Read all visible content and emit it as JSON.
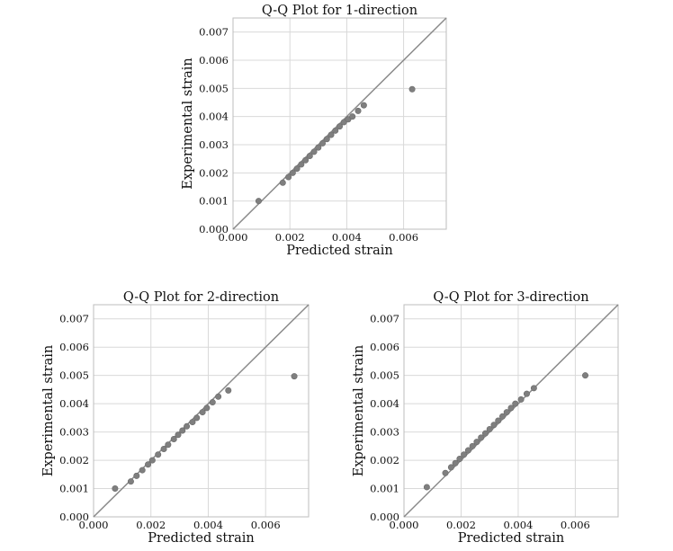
{
  "chart_data": [
    {
      "type": "scatter",
      "title": "Q-Q Plot for 1-direction",
      "xlabel": "Predicted strain",
      "ylabel": "Experimental strain",
      "xlim": [
        0.0,
        0.0075
      ],
      "ylim": [
        0.0,
        0.0075
      ],
      "x_ticks": [
        "0.000",
        "0.002",
        "0.004",
        "0.006"
      ],
      "y_ticks": [
        "0.000",
        "0.001",
        "0.002",
        "0.003",
        "0.004",
        "0.005",
        "0.006",
        "0.007"
      ],
      "x_tick_values": [
        0.0,
        0.002,
        0.004,
        0.006
      ],
      "y_tick_values": [
        0.0,
        0.001,
        0.002,
        0.003,
        0.004,
        0.005,
        0.006,
        0.007
      ],
      "grid": true,
      "reference_line": [
        [
          0.0,
          0.0
        ],
        [
          0.0075,
          0.0075
        ]
      ],
      "points": [
        [
          0.0009,
          0.001
        ],
        [
          0.00175,
          0.00165
        ],
        [
          0.00195,
          0.00185
        ],
        [
          0.0021,
          0.002
        ],
        [
          0.00225,
          0.00215
        ],
        [
          0.0024,
          0.0023
        ],
        [
          0.00255,
          0.00245
        ],
        [
          0.0027,
          0.0026
        ],
        [
          0.00285,
          0.00275
        ],
        [
          0.003,
          0.0029
        ],
        [
          0.00315,
          0.00305
        ],
        [
          0.0033,
          0.0032
        ],
        [
          0.00345,
          0.00335
        ],
        [
          0.0036,
          0.0035
        ],
        [
          0.00375,
          0.00365
        ],
        [
          0.0039,
          0.0038
        ],
        [
          0.00405,
          0.0039
        ],
        [
          0.0042,
          0.004
        ],
        [
          0.0044,
          0.0042
        ],
        [
          0.0046,
          0.0044
        ],
        [
          0.0063,
          0.00497
        ]
      ]
    },
    {
      "type": "scatter",
      "title": "Q-Q Plot for 2-direction",
      "xlabel": "Predicted strain",
      "ylabel": "Experimental strain",
      "xlim": [
        0.0,
        0.0075
      ],
      "ylim": [
        0.0,
        0.0075
      ],
      "x_ticks": [
        "0.000",
        "0.002",
        "0.004",
        "0.006"
      ],
      "y_ticks": [
        "0.000",
        "0.001",
        "0.002",
        "0.003",
        "0.004",
        "0.005",
        "0.006",
        "0.007"
      ],
      "x_tick_values": [
        0.0,
        0.002,
        0.004,
        0.006
      ],
      "y_tick_values": [
        0.0,
        0.001,
        0.002,
        0.003,
        0.004,
        0.005,
        0.006,
        0.007
      ],
      "grid": true,
      "reference_line": [
        [
          0.0,
          0.0
        ],
        [
          0.0075,
          0.0075
        ]
      ],
      "points": [
        [
          0.00075,
          0.001
        ],
        [
          0.0013,
          0.00125
        ],
        [
          0.0015,
          0.00145
        ],
        [
          0.0017,
          0.00165
        ],
        [
          0.0019,
          0.00185
        ],
        [
          0.00205,
          0.002
        ],
        [
          0.00225,
          0.0022
        ],
        [
          0.00245,
          0.0024
        ],
        [
          0.0026,
          0.00255
        ],
        [
          0.0028,
          0.00275
        ],
        [
          0.00295,
          0.0029
        ],
        [
          0.0031,
          0.00305
        ],
        [
          0.00325,
          0.0032
        ],
        [
          0.00345,
          0.00335
        ],
        [
          0.0036,
          0.0035
        ],
        [
          0.0038,
          0.0037
        ],
        [
          0.00395,
          0.00385
        ],
        [
          0.00415,
          0.00405
        ],
        [
          0.00435,
          0.00425
        ],
        [
          0.0047,
          0.00447
        ],
        [
          0.007,
          0.00497
        ]
      ]
    },
    {
      "type": "scatter",
      "title": "Q-Q Plot for 3-direction",
      "xlabel": "Predicted strain",
      "ylabel": "Experimental strain",
      "xlim": [
        0.0,
        0.0075
      ],
      "ylim": [
        0.0,
        0.0075
      ],
      "x_ticks": [
        "0.000",
        "0.002",
        "0.004",
        "0.006"
      ],
      "y_ticks": [
        "0.000",
        "0.001",
        "0.002",
        "0.003",
        "0.004",
        "0.005",
        "0.006",
        "0.007"
      ],
      "x_tick_values": [
        0.0,
        0.002,
        0.004,
        0.006
      ],
      "y_tick_values": [
        0.0,
        0.001,
        0.002,
        0.003,
        0.004,
        0.005,
        0.006,
        0.007
      ],
      "grid": true,
      "reference_line": [
        [
          0.0,
          0.0
        ],
        [
          0.0075,
          0.0075
        ]
      ],
      "points": [
        [
          0.0008,
          0.00105
        ],
        [
          0.00145,
          0.00155
        ],
        [
          0.00165,
          0.00175
        ],
        [
          0.0018,
          0.0019
        ],
        [
          0.00195,
          0.00205
        ],
        [
          0.0021,
          0.0022
        ],
        [
          0.00225,
          0.00235
        ],
        [
          0.0024,
          0.0025
        ],
        [
          0.00255,
          0.00265
        ],
        [
          0.0027,
          0.0028
        ],
        [
          0.00285,
          0.00295
        ],
        [
          0.003,
          0.0031
        ],
        [
          0.00315,
          0.00325
        ],
        [
          0.0033,
          0.0034
        ],
        [
          0.00345,
          0.00355
        ],
        [
          0.0036,
          0.0037
        ],
        [
          0.00375,
          0.00385
        ],
        [
          0.0039,
          0.004
        ],
        [
          0.0041,
          0.00415
        ],
        [
          0.0043,
          0.00435
        ],
        [
          0.00455,
          0.00455
        ],
        [
          0.00635,
          0.005
        ]
      ]
    }
  ],
  "colors": {
    "point": "#7f7f7f",
    "reference_line": "#8a8a8a",
    "grid": "#d9d9d9",
    "frame": "#bdbdbd"
  }
}
